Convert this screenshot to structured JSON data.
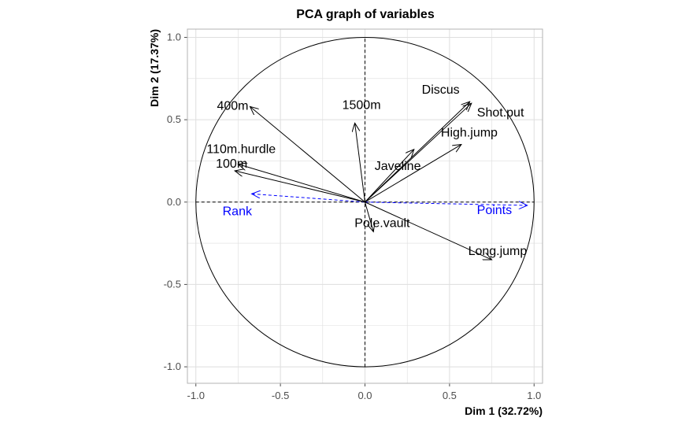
{
  "chart_data": {
    "type": "scatter",
    "title": "PCA graph of variables",
    "xlabel": "Dim 1 (32.72%)",
    "ylabel": "Dim 2 (17.37%)",
    "xlim": [
      -1.05,
      1.05
    ],
    "ylim": [
      -1.1,
      1.05
    ],
    "x_ticks": [
      -1.0,
      -0.5,
      0.0,
      0.5,
      1.0
    ],
    "y_ticks": [
      -1.0,
      -0.5,
      0.0,
      0.5,
      1.0
    ],
    "x_tick_labels": [
      "-1.0",
      "-0.5",
      "0.0",
      "0.5",
      "1.0"
    ],
    "y_tick_labels": [
      "-1.0",
      "-0.5",
      "0.0",
      "0.5",
      "1.0"
    ],
    "grid": true,
    "unit_circle": true,
    "active_variables": [
      {
        "name": "100m",
        "x": -0.77,
        "y": 0.19
      },
      {
        "name": "400m",
        "x": -0.68,
        "y": 0.58
      },
      {
        "name": "110m.hurdle",
        "x": -0.75,
        "y": 0.23
      },
      {
        "name": "1500m",
        "x": -0.06,
        "y": 0.48
      },
      {
        "name": "Discus",
        "x": 0.62,
        "y": 0.61
      },
      {
        "name": "Shot.put",
        "x": 0.63,
        "y": 0.6
      },
      {
        "name": "High.jump",
        "x": 0.57,
        "y": 0.35
      },
      {
        "name": "Javeline",
        "x": 0.29,
        "y": 0.32
      },
      {
        "name": "Pole.vault",
        "x": 0.05,
        "y": -0.18
      },
      {
        "name": "Long.jump",
        "x": 0.75,
        "y": -0.35
      }
    ],
    "supplementary_variables": [
      {
        "name": "Rank",
        "x": -0.67,
        "y": 0.05
      },
      {
        "name": "Points",
        "x": 0.96,
        "y": -0.02
      }
    ],
    "colors": {
      "active": "#000000",
      "supplementary": "#0000ff",
      "grid": "#dedede",
      "panel_border": "#b3b3b3"
    }
  }
}
